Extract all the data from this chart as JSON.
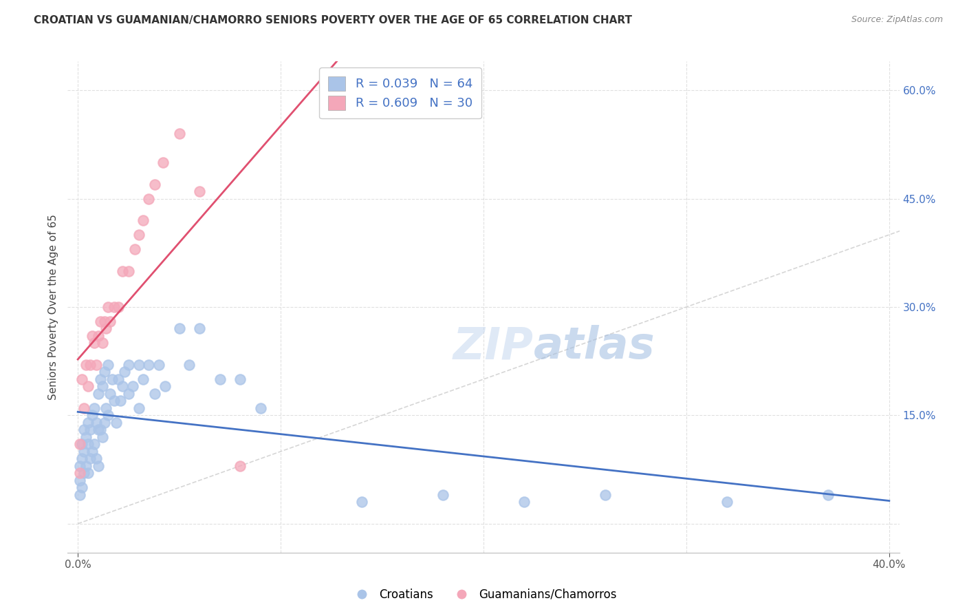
{
  "title": "CROATIAN VS GUAMANIAN/CHAMORRO SENIORS POVERTY OVER THE AGE OF 65 CORRELATION CHART",
  "source": "Source: ZipAtlas.com",
  "ylabel": "Seniors Poverty Over the Age of 65",
  "xlim": [
    -0.005,
    0.405
  ],
  "ylim": [
    -0.04,
    0.64
  ],
  "y_ticks_right": [
    0.0,
    0.15,
    0.3,
    0.45,
    0.6
  ],
  "y_tick_labels_right": [
    "",
    "15.0%",
    "30.0%",
    "45.0%",
    "60.0%"
  ],
  "x_tick_labels": [
    "0.0%",
    "40.0%"
  ],
  "x_tick_pos": [
    0.0,
    0.4
  ],
  "grid_color": "#e0e0e0",
  "background_color": "#ffffff",
  "croatian_color": "#aac4e8",
  "guamanian_color": "#f4a7b9",
  "croatian_line_color": "#4472c4",
  "guamanian_line_color": "#e05070",
  "diagonal_color": "#cccccc",
  "R_croatian": 0.039,
  "N_croatian": 64,
  "R_guamanian": 0.609,
  "N_guamanian": 30,
  "legend_croatian": "Croatians",
  "legend_guamanian": "Guamanians/Chamorros",
  "watermark_zip": "ZIP",
  "watermark_atlas": "atlas",
  "scatter_size": 110,
  "croatian_x": [
    0.001,
    0.001,
    0.001,
    0.002,
    0.002,
    0.002,
    0.003,
    0.003,
    0.003,
    0.004,
    0.004,
    0.005,
    0.005,
    0.005,
    0.006,
    0.006,
    0.007,
    0.007,
    0.008,
    0.008,
    0.009,
    0.009,
    0.01,
    0.01,
    0.01,
    0.011,
    0.011,
    0.012,
    0.012,
    0.013,
    0.013,
    0.014,
    0.015,
    0.015,
    0.016,
    0.017,
    0.018,
    0.019,
    0.02,
    0.021,
    0.022,
    0.023,
    0.025,
    0.025,
    0.027,
    0.03,
    0.03,
    0.032,
    0.035,
    0.038,
    0.04,
    0.043,
    0.05,
    0.055,
    0.06,
    0.07,
    0.08,
    0.09,
    0.14,
    0.18,
    0.22,
    0.26,
    0.32,
    0.37
  ],
  "croatian_y": [
    0.08,
    0.06,
    0.04,
    0.11,
    0.09,
    0.05,
    0.13,
    0.1,
    0.07,
    0.12,
    0.08,
    0.14,
    0.11,
    0.07,
    0.13,
    0.09,
    0.15,
    0.1,
    0.16,
    0.11,
    0.14,
    0.09,
    0.18,
    0.13,
    0.08,
    0.2,
    0.13,
    0.19,
    0.12,
    0.21,
    0.14,
    0.16,
    0.22,
    0.15,
    0.18,
    0.2,
    0.17,
    0.14,
    0.2,
    0.17,
    0.19,
    0.21,
    0.22,
    0.18,
    0.19,
    0.22,
    0.16,
    0.2,
    0.22,
    0.18,
    0.22,
    0.19,
    0.27,
    0.22,
    0.27,
    0.2,
    0.2,
    0.16,
    0.03,
    0.04,
    0.03,
    0.04,
    0.03,
    0.04
  ],
  "guamanian_x": [
    0.001,
    0.001,
    0.002,
    0.003,
    0.004,
    0.005,
    0.006,
    0.007,
    0.008,
    0.009,
    0.01,
    0.011,
    0.012,
    0.013,
    0.014,
    0.015,
    0.016,
    0.018,
    0.02,
    0.022,
    0.025,
    0.028,
    0.03,
    0.032,
    0.035,
    0.038,
    0.042,
    0.05,
    0.06,
    0.08
  ],
  "guamanian_y": [
    0.11,
    0.07,
    0.2,
    0.16,
    0.22,
    0.19,
    0.22,
    0.26,
    0.25,
    0.22,
    0.26,
    0.28,
    0.25,
    0.28,
    0.27,
    0.3,
    0.28,
    0.3,
    0.3,
    0.35,
    0.35,
    0.38,
    0.4,
    0.42,
    0.45,
    0.47,
    0.5,
    0.54,
    0.46,
    0.08
  ]
}
